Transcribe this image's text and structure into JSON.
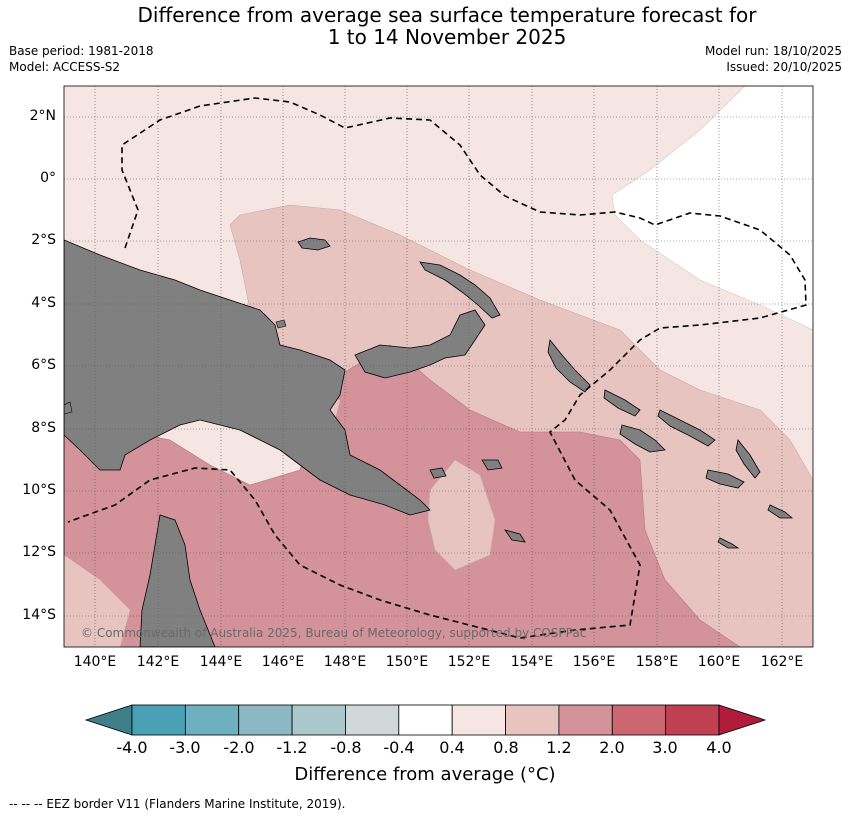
{
  "header": {
    "title_line1": "Difference from average sea surface temperature forecast for",
    "title_line2": "1 to 14 November 2025",
    "base_period": "Base period: 1981-2018",
    "model": "Model: ACCESS-S2",
    "model_run": "Model run: 18/10/2025",
    "issued": "Issued: 20/10/2025"
  },
  "map": {
    "lat_labels": [
      "2°N",
      "0°",
      "2°S",
      "4°S",
      "6°S",
      "8°S",
      "10°S",
      "12°S",
      "14°S"
    ],
    "lon_labels": [
      "140°E",
      "142°E",
      "144°E",
      "146°E",
      "148°E",
      "150°E",
      "152°E",
      "154°E",
      "156°E",
      "158°E",
      "160°E",
      "162°E"
    ],
    "copyright": "© Commonwealth of Australia 2025, Bureau of Meteorology, supported by COSPPac",
    "land_color": "#808080"
  },
  "colorbar": {
    "labels": [
      "-4.0",
      "-3.0",
      "-2.0",
      "-1.2",
      "-0.8",
      "-0.4",
      "0.4",
      "0.8",
      "1.2",
      "2.0",
      "3.0",
      "4.0"
    ],
    "colors": [
      "#3e7f8a",
      "#4aa0b5",
      "#6fb0c0",
      "#8cb8c4",
      "#a9c8cc",
      "#d0d8da",
      "#ffffff",
      "#f5e6e4",
      "#e8c4c1",
      "#d4939a",
      "#cc6670",
      "#c04052",
      "#b01c3a"
    ],
    "title": "Difference from average (°C)"
  },
  "footer": {
    "legend": "-- -- -- EEZ border V11 (Flanders Marine Institute, 2019)."
  }
}
